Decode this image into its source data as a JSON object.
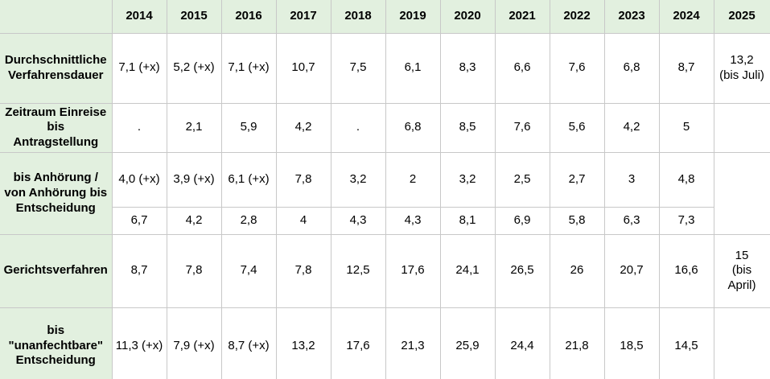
{
  "table": {
    "columns": [
      "2014",
      "2015",
      "2016",
      "2017",
      "2018",
      "2019",
      "2020",
      "2021",
      "2022",
      "2023",
      "2024",
      "2025"
    ],
    "rows": [
      {
        "label": "Durchschnittliche\nVerfahrensdauer",
        "values": [
          "7,1 (+x)",
          "5,2 (+x)",
          "7,1 (+x)",
          "10,7",
          "7,5",
          "6,1",
          "8,3",
          "6,6",
          "7,6",
          "6,8",
          "8,7",
          "13,2\n(bis Juli)"
        ]
      },
      {
        "label": "Zeitraum Einreise\nbis\nAntragstellung",
        "values": [
          ".",
          "2,1",
          "5,9",
          "4,2",
          ".",
          "6,8",
          "8,5",
          "7,6",
          "5,6",
          "4,2",
          "5",
          ""
        ]
      },
      {
        "label": "bis Anhörung /\nvon Anhörung bis\nEntscheidung",
        "values": [
          "4,0 (+x)",
          "3,9 (+x)",
          "6,1 (+x)",
          "7,8",
          "3,2",
          "2",
          "3,2",
          "2,5",
          "2,7",
          "3",
          "4,8"
        ],
        "sub_values": [
          "6,7",
          "4,2",
          "2,8",
          "4",
          "4,3",
          "4,3",
          "8,1",
          "6,9",
          "5,8",
          "6,3",
          "7,3"
        ],
        "merged_cell_2025": ""
      },
      {
        "label": "Gerichtsverfahren",
        "values": [
          "8,7",
          "7,8",
          "7,4",
          "7,8",
          "12,5",
          "17,6",
          "24,1",
          "26,5",
          "26",
          "20,7",
          "16,6",
          "15\n(bis\nApril)"
        ]
      },
      {
        "label": "bis\n\"unanfechtbare\"\nEntscheidung",
        "values": [
          "11,3 (+x)",
          "7,9 (+x)",
          "8,7 (+x)",
          "13,2",
          "17,6",
          "21,3",
          "25,9",
          "24,4",
          "21,8",
          "18,5",
          "14,5",
          ""
        ]
      }
    ],
    "colors": {
      "header_background": "#e2f0df",
      "border": "#c8c8c8",
      "cell_background": "#ffffff",
      "text": "#000000"
    }
  },
  "chart_data": {
    "type": "table",
    "title": "",
    "categories": [
      "2014",
      "2015",
      "2016",
      "2017",
      "2018",
      "2019",
      "2020",
      "2021",
      "2022",
      "2023",
      "2024",
      "2025"
    ],
    "series": [
      {
        "name": "Durchschnittliche Verfahrensdauer",
        "values": [
          "7,1 (+x)",
          "5,2 (+x)",
          "7,1 (+x)",
          "10,7",
          "7,5",
          "6,1",
          "8,3",
          "6,6",
          "7,6",
          "6,8",
          "8,7",
          "13,2 (bis Juli)"
        ]
      },
      {
        "name": "Zeitraum Einreise bis Antragstellung",
        "values": [
          ".",
          "2,1",
          "5,9",
          "4,2",
          ".",
          "6,8",
          "8,5",
          "7,6",
          "5,6",
          "4,2",
          "5",
          ""
        ]
      },
      {
        "name": "bis Anhörung / von Anhörung bis Entscheidung (bis Anhörung)",
        "values": [
          "4,0 (+x)",
          "3,9 (+x)",
          "6,1 (+x)",
          "7,8",
          "3,2",
          "2",
          "3,2",
          "2,5",
          "2,7",
          "3",
          "4,8",
          ""
        ]
      },
      {
        "name": "bis Anhörung / von Anhörung bis Entscheidung (von Anhörung bis Entscheidung)",
        "values": [
          "6,7",
          "4,2",
          "2,8",
          "4",
          "4,3",
          "4,3",
          "8,1",
          "6,9",
          "5,8",
          "6,3",
          "7,3",
          ""
        ]
      },
      {
        "name": "Gerichtsverfahren",
        "values": [
          "8,7",
          "7,8",
          "7,4",
          "7,8",
          "12,5",
          "17,6",
          "24,1",
          "26,5",
          "26",
          "20,7",
          "16,6",
          "15 (bis April)"
        ]
      },
      {
        "name": "bis \"unanfechtbare\" Entscheidung",
        "values": [
          "11,3 (+x)",
          "7,9 (+x)",
          "8,7 (+x)",
          "13,2",
          "17,6",
          "21,3",
          "25,9",
          "24,4",
          "21,8",
          "18,5",
          "14,5",
          ""
        ]
      }
    ],
    "layout": {
      "header_row": "years across top",
      "label_column": "left, green tinted",
      "grid": true
    }
  }
}
